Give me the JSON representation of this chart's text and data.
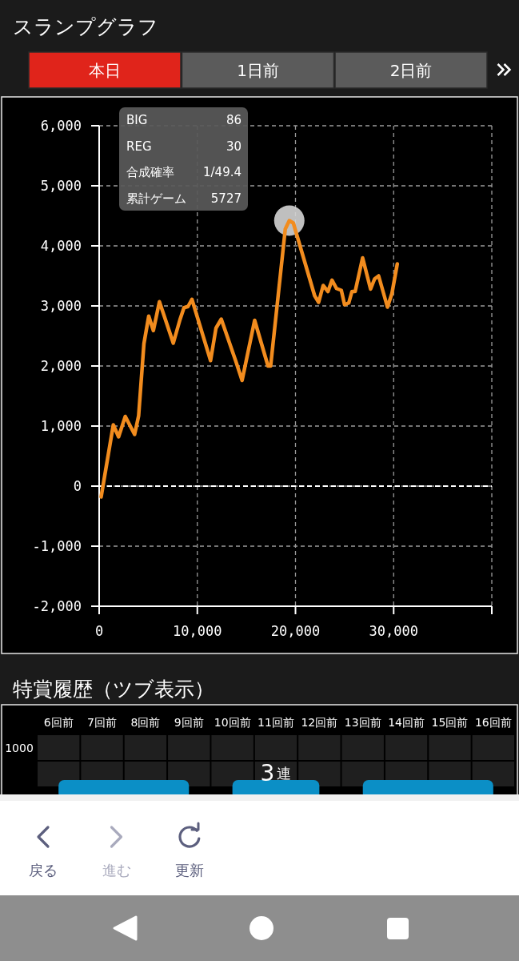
{
  "chart_data": [
    {
      "type": "other",
      "title": "スランプグラフ",
      "annotations": [
        "本日",
        "1日前",
        "2日前"
      ]
    },
    {
      "type": "line",
      "x": [
        200,
        1440,
        1980,
        2660,
        3610,
        4020,
        4560,
        5050,
        5520,
        6140,
        7550,
        8230,
        8640,
        9050,
        9450,
        11350,
        11900,
        12440,
        13940,
        14560,
        15840,
        17200,
        17470,
        18960,
        19370,
        19780,
        21950,
        22360,
        22820,
        23310,
        23720,
        24180,
        24670,
        25000,
        25430,
        25750,
        26080,
        26840,
        27650,
        28060,
        28470,
        29370,
        29830,
        30370
      ],
      "series": [
        {
          "type": "scatter",
          "color": "#d4d4d4",
          "x": [
            19370
          ],
          "values": [
            4420
          ]
        },
        {
          "color": "#f28c1e",
          "values": [
            -180,
            1020,
            820,
            1160,
            860,
            1170,
            2370,
            2830,
            2590,
            3070,
            2380,
            2770,
            2970,
            2990,
            3110,
            2090,
            2630,
            2780,
            2070,
            1760,
            2760,
            2000,
            2000,
            4280,
            4420,
            4380,
            3170,
            3060,
            3340,
            3240,
            3430,
            3290,
            3260,
            3020,
            3050,
            3240,
            3240,
            3800,
            3280,
            3450,
            3500,
            2980,
            3210,
            3700
          ]
        }
      ],
      "xlim": [
        0,
        40000
      ],
      "xticks": [
        0,
        {
          "value": 10000,
          "label": "10,000"
        },
        {
          "value": 20000,
          "label": "20,000"
        },
        {
          "value": 30000,
          "label": "30,000"
        },
        {
          "value": 40000,
          "label": null
        }
      ],
      "ylim": [
        -2000,
        6000
      ],
      "yticks": [
        {
          "value": -2000,
          "label": "-2,000"
        },
        {
          "value": -1000,
          "label": "-1,000"
        },
        0,
        {
          "value": 1000,
          "label": "1,000"
        },
        {
          "value": 2000,
          "label": "2,000"
        },
        {
          "value": 3000,
          "label": "3,000"
        },
        {
          "value": 4000,
          "label": "4,000"
        },
        {
          "value": 5000,
          "label": "5,000"
        },
        {
          "value": 6000,
          "label": "6,000"
        }
      ],
      "grid": true,
      "ref_lines": [
        {
          "axis": "y",
          "value": 0,
          "color": "#ffffff",
          "line_style": "dashed"
        }
      ],
      "annotations": [
        "BIG",
        "86",
        "REG",
        "30",
        "合成確率",
        "1/49.4",
        "累計ゲーム",
        "5727"
      ]
    },
    {
      "type": "heatmap",
      "title": "特賞履歴（ツブ表示）",
      "categories": [
        "6回前",
        "7回前",
        "8回前",
        "9回前",
        "10回前",
        "11回前",
        "12回前",
        "13回前",
        "14回前",
        "15回前",
        "16回前"
      ],
      "y_categories": [
        "1000"
      ],
      "cells": [
        [
          null,
          null,
          null,
          null,
          null,
          null,
          null,
          null,
          null,
          null,
          null
        ]
      ],
      "bands": [
        {
          "axis": "x",
          "from": "6回前",
          "to": "9回前",
          "color": "#0b8fc6"
        },
        {
          "axis": "x",
          "from": "10回前",
          "to": "12回前",
          "color": "#0b8fc6"
        },
        {
          "axis": "x",
          "from": "13回前",
          "to": "16回前",
          "color": "#0b8fc6"
        }
      ],
      "annotations": [
        "3連"
      ]
    },
    {
      "type": "other",
      "annotations": [
        "戻る",
        "進む",
        "更新"
      ]
    }
  ]
}
